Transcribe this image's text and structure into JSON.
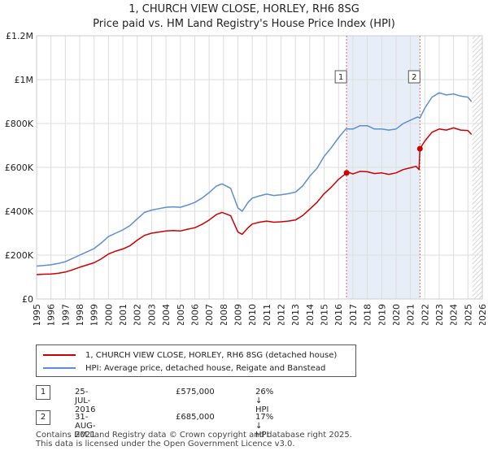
{
  "chart_data": {
    "type": "line",
    "title": "1, CHURCH VIEW CLOSE, HORLEY, RH6 8SG",
    "subtitle": "Price paid vs. HM Land Registry's House Price Index (HPI)",
    "ylim": [
      0,
      1200000
    ],
    "xlim": [
      1995,
      2026
    ],
    "y_ticks": [
      0,
      200000,
      400000,
      600000,
      800000,
      1000000,
      1200000
    ],
    "y_tick_labels": [
      "£0",
      "£200K",
      "£400K",
      "£600K",
      "£800K",
      "£1M",
      "£1.2M"
    ],
    "x_ticks": [
      1995,
      1996,
      1997,
      1998,
      1999,
      2000,
      2001,
      2002,
      2003,
      2004,
      2005,
      2006,
      2007,
      2008,
      2009,
      2010,
      2011,
      2012,
      2013,
      2014,
      2015,
      2016,
      2017,
      2018,
      2019,
      2020,
      2021,
      2022,
      2023,
      2024,
      2025,
      2026
    ],
    "grid": true,
    "series": [
      {
        "name": "1, CHURCH VIEW CLOSE, HORLEY, RH6 8SG (detached house)",
        "color": "#cc0000",
        "x": [
          1995,
          1995.5,
          1996,
          1996.5,
          1997,
          1997.5,
          1998,
          1998.5,
          1999,
          1999.5,
          2000,
          2000.5,
          2001,
          2001.5,
          2002,
          2002.5,
          2003,
          2003.5,
          2004,
          2004.5,
          2005,
          2005.5,
          2006,
          2006.5,
          2007,
          2007.5,
          2007.9,
          2008.5,
          2009,
          2009.3,
          2009.7,
          2010,
          2010.5,
          2011,
          2011.5,
          2012,
          2012.5,
          2013,
          2013.5,
          2014,
          2014.5,
          2015,
          2015.5,
          2016,
          2016.56,
          2016.8,
          2017,
          2017.5,
          2018,
          2018.5,
          2019,
          2019.5,
          2020,
          2020.5,
          2021,
          2021.4,
          2021.6,
          2021.66,
          2022,
          2022.5,
          2023,
          2023.5,
          2024,
          2024.5,
          2025,
          2025.25
        ],
        "values": [
          111000,
          113000,
          114000,
          117000,
          123000,
          133000,
          145000,
          155000,
          165000,
          183000,
          205000,
          218000,
          228000,
          243000,
          268000,
          290000,
          300000,
          305000,
          310000,
          312000,
          310000,
          318000,
          325000,
          340000,
          360000,
          385000,
          395000,
          380000,
          305000,
          295000,
          325000,
          342000,
          350000,
          355000,
          350000,
          352000,
          355000,
          360000,
          380000,
          410000,
          440000,
          480000,
          510000,
          545000,
          575000,
          575000,
          570000,
          582000,
          580000,
          572000,
          575000,
          568000,
          575000,
          590000,
          598000,
          605000,
          590000,
          685000,
          720000,
          760000,
          775000,
          770000,
          780000,
          770000,
          768000,
          750000
        ]
      },
      {
        "name": "HPI: Average price, detached house, Reigate and Banstead",
        "color": "#5b8fd1",
        "x": [
          1995,
          1995.5,
          1996,
          1996.5,
          1997,
          1997.5,
          1998,
          1998.5,
          1999,
          1999.5,
          2000,
          2000.5,
          2001,
          2001.5,
          2002,
          2002.5,
          2003,
          2003.5,
          2004,
          2004.5,
          2005,
          2005.5,
          2006,
          2006.5,
          2007,
          2007.5,
          2007.9,
          2008.5,
          2009,
          2009.3,
          2009.7,
          2010,
          2010.5,
          2011,
          2011.5,
          2012,
          2012.5,
          2013,
          2013.5,
          2014,
          2014.5,
          2015,
          2015.5,
          2016,
          2016.5,
          2017,
          2017.5,
          2018,
          2018.5,
          2019,
          2019.5,
          2020,
          2020.5,
          2021,
          2021.5,
          2021.66,
          2022,
          2022.5,
          2023,
          2023.5,
          2024,
          2024.5,
          2025,
          2025.25
        ],
        "values": [
          150000,
          153000,
          156000,
          162000,
          170000,
          185000,
          200000,
          215000,
          230000,
          255000,
          285000,
          300000,
          315000,
          335000,
          365000,
          395000,
          405000,
          412000,
          418000,
          420000,
          418000,
          428000,
          440000,
          460000,
          485000,
          515000,
          525000,
          505000,
          415000,
          400000,
          440000,
          460000,
          470000,
          478000,
          472000,
          475000,
          480000,
          487000,
          515000,
          560000,
          595000,
          650000,
          690000,
          735000,
          775000,
          775000,
          790000,
          790000,
          775000,
          775000,
          770000,
          775000,
          800000,
          815000,
          830000,
          825000,
          870000,
          920000,
          940000,
          930000,
          935000,
          925000,
          920000,
          900000
        ]
      }
    ],
    "annotations": [
      {
        "label": "1",
        "x": 2016.56
      },
      {
        "label": "2",
        "x": 2021.66
      }
    ],
    "points": [
      {
        "label": "1",
        "x": 2016.56,
        "y": 575000,
        "date": "25-JUL-2016",
        "price": "£575,000",
        "hpi_diff": "26% ↓ HPI"
      },
      {
        "label": "2",
        "x": 2021.66,
        "y": 685000,
        "date": "31-AUG-2021",
        "price": "£685,000",
        "hpi_diff": "17% ↓ HPI"
      }
    ],
    "future_from": 2025.3
  },
  "footer": {
    "line1": "Contains HM Land Registry data © Crown copyright and database right 2025.",
    "line2": "This data is licensed under the Open Government Licence v3.0."
  }
}
